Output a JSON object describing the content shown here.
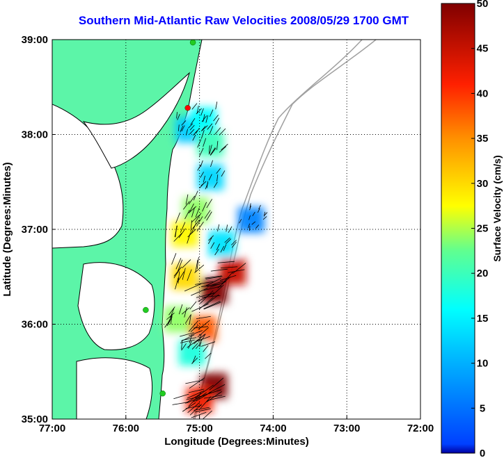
{
  "chart_data": {
    "type": "heatmap",
    "title": "Southern Mid-Atlantic Raw Velocities 2008/05/29 1700 GMT",
    "xlabel": "Longitude (Degrees:Minutes)",
    "ylabel": "Latitude (Degrees:Minutes)",
    "colorbar_label": "Surface Velocity (cm/s)",
    "xlim": [
      -77,
      -72
    ],
    "ylim": [
      35,
      39
    ],
    "x_ticks": [
      {
        "value": -77,
        "label": "77:00"
      },
      {
        "value": -76,
        "label": "76:00"
      },
      {
        "value": -75,
        "label": "75:00"
      },
      {
        "value": -74,
        "label": "74:00"
      },
      {
        "value": -73,
        "label": "73:00"
      },
      {
        "value": -72,
        "label": "72:00"
      }
    ],
    "y_ticks": [
      {
        "value": 35,
        "label": "35:00"
      },
      {
        "value": 36,
        "label": "36:00"
      },
      {
        "value": 37,
        "label": "37:00"
      },
      {
        "value": 38,
        "label": "38:00"
      },
      {
        "value": 39,
        "label": "39:00"
      }
    ],
    "colorbar_ticks": [
      {
        "value": 0,
        "label": "0"
      },
      {
        "value": 5,
        "label": "5"
      },
      {
        "value": 10,
        "label": "10"
      },
      {
        "value": 15,
        "label": "15"
      },
      {
        "value": 20,
        "label": "20"
      },
      {
        "value": 25,
        "label": "25"
      },
      {
        "value": 30,
        "label": "30"
      },
      {
        "value": 35,
        "label": "35"
      },
      {
        "value": 40,
        "label": "40"
      },
      {
        "value": 45,
        "label": "45"
      },
      {
        "value": 50,
        "label": "50"
      }
    ],
    "clim": [
      0,
      50
    ],
    "colormap": "jet",
    "grid": true,
    "land_color": "#5cf5a8",
    "coastline_color": "#000000",
    "bathymetry_color": "#a0a0a0",
    "velocity_regions": [
      {
        "lon": -75.15,
        "lat": 38.05,
        "speed": 12
      },
      {
        "lon": -74.95,
        "lat": 38.15,
        "speed": 16
      },
      {
        "lon": -74.85,
        "lat": 37.9,
        "speed": 20
      },
      {
        "lon": -74.85,
        "lat": 37.55,
        "speed": 13
      },
      {
        "lon": -74.3,
        "lat": 37.1,
        "speed": 6
      },
      {
        "lon": -75.05,
        "lat": 37.2,
        "speed": 24
      },
      {
        "lon": -75.2,
        "lat": 36.95,
        "speed": 28
      },
      {
        "lon": -74.7,
        "lat": 36.85,
        "speed": 14
      },
      {
        "lon": -74.55,
        "lat": 36.55,
        "speed": 45
      },
      {
        "lon": -74.8,
        "lat": 36.35,
        "speed": 50
      },
      {
        "lon": -75.2,
        "lat": 36.5,
        "speed": 30
      },
      {
        "lon": -75.3,
        "lat": 36.05,
        "speed": 24
      },
      {
        "lon": -74.95,
        "lat": 35.95,
        "speed": 38
      },
      {
        "lon": -75.1,
        "lat": 35.7,
        "speed": 18
      },
      {
        "lon": -74.8,
        "lat": 35.35,
        "speed": 50
      },
      {
        "lon": -75.0,
        "lat": 35.2,
        "speed": 42
      }
    ],
    "stations": [
      {
        "lon": -75.09,
        "lat": 38.97,
        "color": "#22cc22"
      },
      {
        "lon": -75.16,
        "lat": 38.28,
        "color": "#ff0000"
      },
      {
        "lon": -75.73,
        "lat": 36.15,
        "color": "#22cc22"
      },
      {
        "lon": -75.5,
        "lat": 35.27,
        "color": "#22cc22"
      }
    ]
  }
}
